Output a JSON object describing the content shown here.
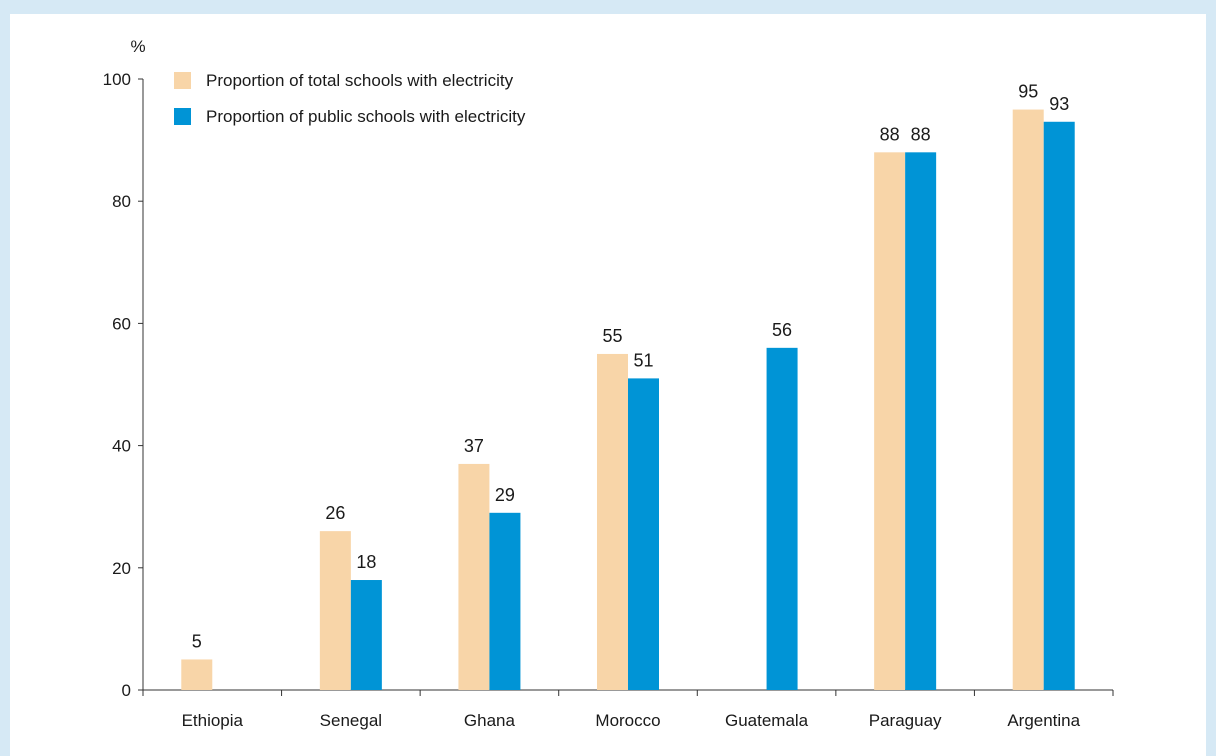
{
  "chart_data": {
    "type": "bar",
    "ylabel": "%",
    "ylim": [
      0,
      100
    ],
    "yticks": [
      0,
      20,
      40,
      60,
      80,
      100
    ],
    "grid": false,
    "legend_position": "top-left",
    "categories": [
      "Ethiopia",
      "Senegal",
      "Ghana",
      "Morocco",
      "Guatemala",
      "Paraguay",
      "Argentina"
    ],
    "series": [
      {
        "name": "Proportion of total schools with electricity",
        "color": "#f8d5a8",
        "values": [
          5,
          26,
          37,
          55,
          null,
          88,
          95
        ],
        "labels": [
          "5",
          "26",
          "37",
          "55",
          null,
          "88",
          "95"
        ]
      },
      {
        "name": "Proportion of public schools with electricity",
        "color": "#0094d6",
        "values": [
          null,
          18,
          29,
          51,
          56,
          88,
          93
        ],
        "labels": [
          null,
          "18",
          "29",
          "51",
          "56",
          "88",
          "93"
        ]
      }
    ]
  }
}
